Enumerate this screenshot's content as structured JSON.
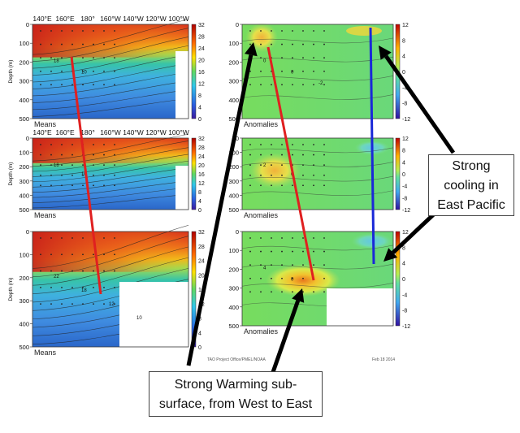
{
  "chart_data": [
    {
      "type": "heatmap",
      "panel": "means",
      "xticks": [
        "140°E",
        "160°E",
        "180°",
        "160°W",
        "140°W",
        "120°W",
        "100°W"
      ],
      "yticks": [
        "0",
        "100",
        "200",
        "300",
        "400",
        "500"
      ],
      "ylabel": "Depth (m)",
      "ylim": [
        500,
        0
      ],
      "colorbar": [
        "32",
        "28",
        "24",
        "20",
        "16",
        "12",
        "8",
        "4",
        "0"
      ],
      "corner_label": "Means",
      "contour_labels": [
        "18",
        "10"
      ]
    },
    {
      "type": "heatmap",
      "panel": "anomalies",
      "xticks": [],
      "yticks": [
        "0",
        "100",
        "200",
        "300",
        "400",
        "500"
      ],
      "ylim": [
        500,
        0
      ],
      "colorbar": [
        "12",
        "8",
        "4",
        "0",
        "-4",
        "-8",
        "-12"
      ],
      "corner_label": "Anomalies",
      "contour_labels": [
        "0",
        "0",
        "-2"
      ]
    },
    {
      "type": "heatmap",
      "panel": "means",
      "xticks": [
        "140°E",
        "160°E",
        "180°",
        "160°W",
        "140°W",
        "120°W",
        "100°W"
      ],
      "yticks": [
        "0",
        "100",
        "200",
        "300",
        "400",
        "500"
      ],
      "ylabel": "Depth (m)",
      "ylim": [
        500,
        0
      ],
      "colorbar": [
        "32",
        "28",
        "24",
        "20",
        "16",
        "12",
        "8",
        "4",
        "0"
      ],
      "corner_label": "Means",
      "contour_labels": [
        "18",
        "10"
      ]
    },
    {
      "type": "heatmap",
      "panel": "anomalies",
      "xticks": [],
      "yticks": [
        "0",
        "100",
        "200",
        "300",
        "400",
        "500"
      ],
      "ylim": [
        500,
        0
      ],
      "colorbar": [
        "12",
        "8",
        "4",
        "0",
        "-4",
        "-8",
        "-12"
      ],
      "corner_label": "Anomalies",
      "contour_labels": [
        "2",
        "0"
      ]
    },
    {
      "type": "heatmap",
      "panel": "means",
      "xticks": [],
      "yticks": [
        "0",
        "100",
        "200",
        "300",
        "400",
        "500"
      ],
      "ylabel": "Depth (m)",
      "ylim": [
        500,
        0
      ],
      "colorbar": [
        "32",
        "28",
        "24",
        "20",
        "16",
        "12",
        "8",
        "4",
        "0"
      ],
      "corner_label": "Means",
      "contour_labels": [
        "22",
        "18",
        "12",
        "10"
      ]
    },
    {
      "type": "heatmap",
      "panel": "anomalies",
      "xticks": [],
      "yticks": [
        "0",
        "100",
        "200",
        "300",
        "400",
        "500"
      ],
      "ylim": [
        500,
        0
      ],
      "colorbar": [
        "12",
        "8",
        "4",
        "0",
        "-4",
        "-8",
        "-12"
      ],
      "corner_label": "Anomalies",
      "contour_labels": [
        "4",
        "0"
      ]
    }
  ],
  "callouts": {
    "east_line1": "Strong",
    "east_line2": "cooling in",
    "east_line3": "East Pacific",
    "west_line1": "Strong Warming sub-",
    "west_line2": "surface, from West to East"
  },
  "footer": {
    "left": "TAO Project Office/PMEL/NOAA",
    "right": "Feb 18 2014"
  },
  "colors": {
    "warm_line": "#e02020",
    "cool_line": "#1a28d8",
    "arrow": "#000000"
  }
}
